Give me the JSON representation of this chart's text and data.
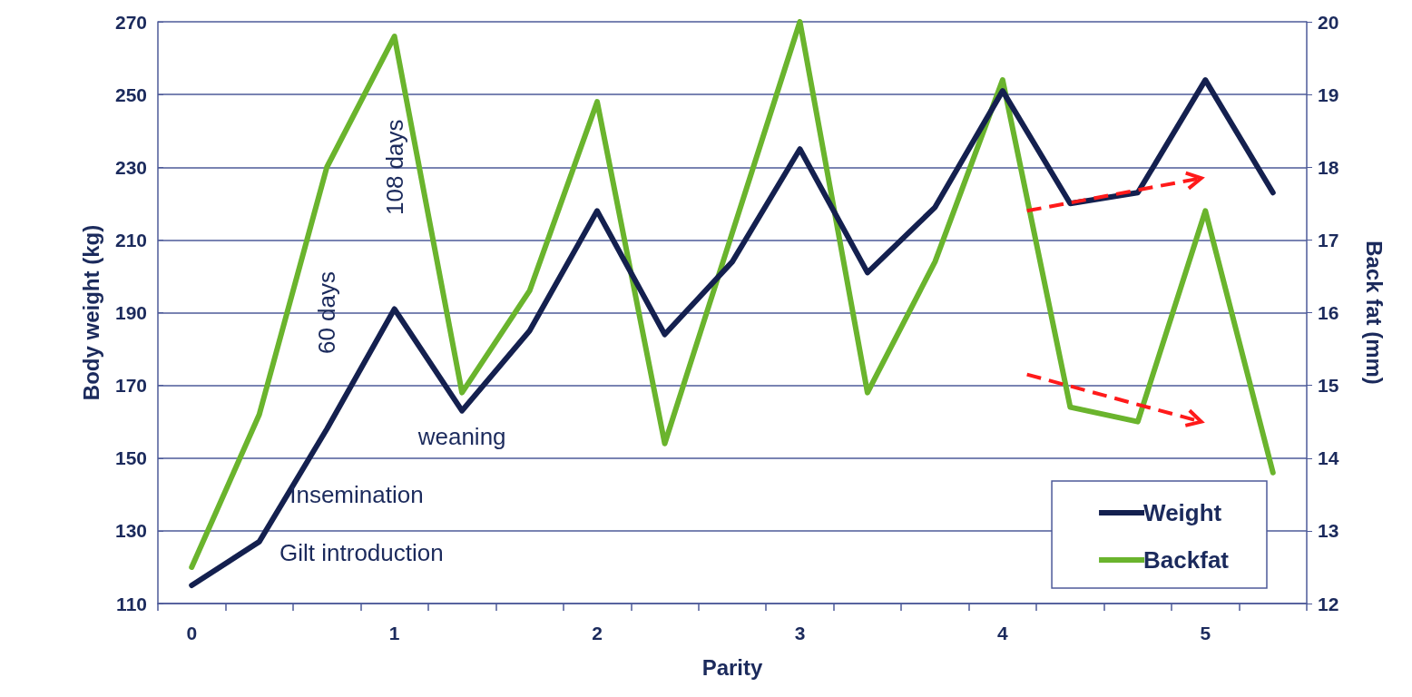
{
  "chart_data": {
    "type": "line",
    "xlabel": "Parity",
    "ylabel": "Body weight (kg)",
    "y2label": "Back fat (mm)",
    "categories": [
      "0",
      null,
      null,
      "1",
      null,
      null,
      "2",
      null,
      null,
      "3",
      null,
      null,
      "4",
      null,
      null,
      "5",
      null
    ],
    "series": [
      {
        "name": "Weight",
        "color": "#14204f",
        "values": [
          115,
          127,
          158,
          191,
          163,
          185,
          218,
          184,
          204,
          235,
          201,
          219,
          251,
          220,
          223,
          254,
          223
        ]
      },
      {
        "name": "Backfat",
        "color": "#6ab42d",
        "axis": "y2",
        "values": [
          12.5,
          14.6,
          18.0,
          19.8,
          14.9,
          16.3,
          18.9,
          14.2,
          17.1,
          20.0,
          14.9,
          16.7,
          19.2,
          14.7,
          14.5,
          17.4,
          13.8
        ]
      }
    ],
    "ylim": [
      110,
      270
    ],
    "yticks": [
      110,
      130,
      150,
      170,
      190,
      210,
      230,
      250,
      270
    ],
    "y2lim": [
      12,
      20
    ],
    "y2ticks": [
      12,
      13,
      14,
      15,
      16,
      17,
      18,
      19,
      20
    ],
    "grid": "y",
    "legend": "bottom right",
    "marker": "none",
    "line_style": "solid",
    "annotations": [
      "60 days",
      "108 days",
      {
        "text": "weaning",
        "y": 163
      },
      "Insemination",
      "Gilt introduction"
    ]
  }
}
